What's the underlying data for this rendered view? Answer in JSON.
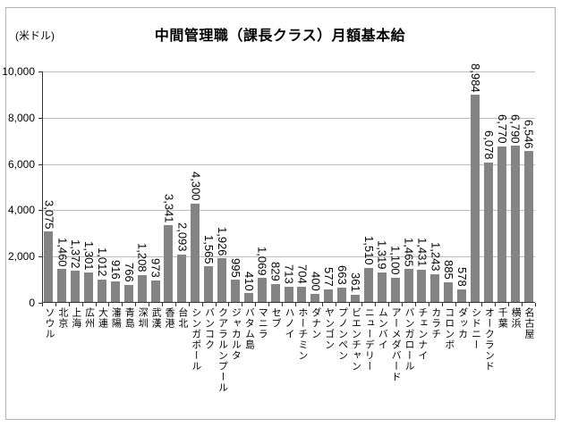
{
  "figure": {
    "background": "#ffffff",
    "border_color": "#b3b3b3"
  },
  "chart_data": {
    "type": "bar",
    "title": "中間管理職（課長クラス）月額基本給",
    "unit_label": "(米ドル)",
    "xlabel": "",
    "ylabel": "",
    "ylim": [
      0,
      10000
    ],
    "ytick_labels": [
      "0",
      "2,000",
      "4,000",
      "6,000",
      "8,000",
      "10,000"
    ],
    "grid": true,
    "legend_position": "none",
    "bar_color": "#848484",
    "gridline_color": "#bdbdbd",
    "axis_color": "#333333",
    "categories": [
      "ソウル",
      "北京",
      "上海",
      "広州",
      "大連",
      "瀋陽",
      "青島",
      "深圳",
      "武漢",
      "香港",
      "台北",
      "シンガポール",
      "バンコク",
      "クアラルンプール",
      "ジャカルタ",
      "バタム島",
      "マニラ",
      "セブ",
      "ハノイ",
      "ホーチミン",
      "ダナン",
      "ヤンゴン",
      "プノンペン",
      "ビエンチャン",
      "ニューデリー",
      "ムンバイ",
      "アーメダバード",
      "バンガロール",
      "チェンナイ",
      "カラチ",
      "コロンボ",
      "ダッカ",
      "シドニー",
      "オークランド",
      "千葉",
      "横浜",
      "名古屋"
    ],
    "values": [
      3075,
      1460,
      1372,
      1301,
      1012,
      916,
      766,
      1208,
      973,
      3341,
      2093,
      4300,
      1565,
      1926,
      995,
      410,
      1069,
      829,
      713,
      704,
      400,
      577,
      663,
      361,
      1510,
      1319,
      1100,
      1465,
      1431,
      1243,
      885,
      578,
      8984,
      6078,
      6770,
      6790,
      6546
    ],
    "value_labels": [
      "3,075",
      "1,460",
      "1,372",
      "1,301",
      "1,012",
      "916",
      "766",
      "1,208",
      "973",
      "3,341",
      "2,093",
      "4,300",
      "1,565",
      "1,926",
      "995",
      "410",
      "1,069",
      "829",
      "713",
      "704",
      "400",
      "577",
      "663",
      "361",
      "1,510",
      "1,319",
      "1,100",
      "1,465",
      "1,431",
      "1,243",
      "885",
      "578",
      "8,984",
      "6,078",
      "6,770",
      "6,790",
      "6,546"
    ]
  }
}
